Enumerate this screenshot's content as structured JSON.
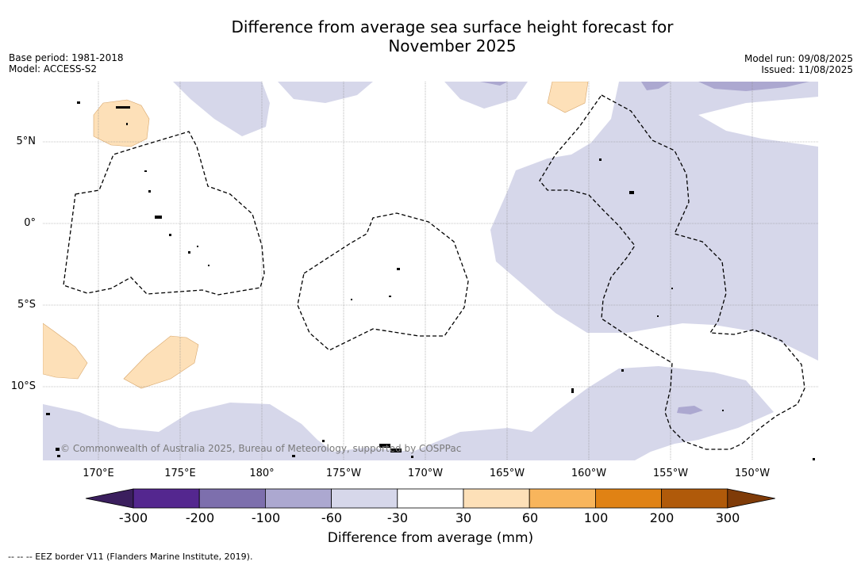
{
  "title_line1": "Difference from average sea surface height forecast for",
  "title_line2": "November 2025",
  "base_period": "Base period: 1981-2018",
  "model": "Model: ACCESS-S2",
  "model_run": "Model run: 09/08/2025",
  "issued": "Issued: 11/08/2025",
  "copyright": "© Commonwealth of Australia 2025, Bureau of Meteorology, supported by COSPPac",
  "lat_ticks": [
    "5°N",
    "0°",
    "5°S",
    "10°S"
  ],
  "lon_ticks": [
    "170°E",
    "175°E",
    "180°",
    "175°W",
    "170°W",
    "165°W",
    "160°W",
    "155°W",
    "150°W"
  ],
  "colorbar": {
    "labels": [
      "-300",
      "-200",
      "-100",
      "-60",
      "-30",
      "30",
      "60",
      "100",
      "200",
      "300"
    ],
    "title": "Difference from average (mm)",
    "colors": [
      "#3b1f5e",
      "#54278f",
      "#7d6fad",
      "#aca8d0",
      "#d6d7ea",
      "#ffffff",
      "#fde0b8",
      "#f8b55c",
      "#e08214",
      "#b05a0a",
      "#7f3b08"
    ]
  },
  "legend": "--  --  -- EEZ border V11 (Flanders Marine Institute, 2019)."
}
